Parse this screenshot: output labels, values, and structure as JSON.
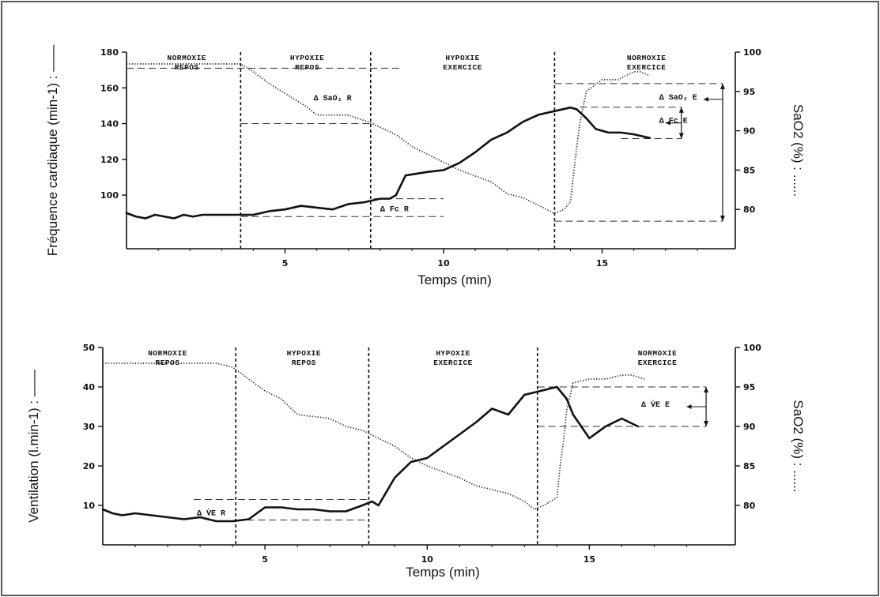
{
  "chart_data": [
    {
      "type": "line",
      "xlabel": "Temps (min)",
      "ylabel": "Fréquence cardiaque (min-1) : ——",
      "y2label": "SaO2 (%) : ......",
      "xlim": [
        0,
        19.2
      ],
      "ylim": [
        70,
        180
      ],
      "y2lim": [
        75,
        100
      ],
      "xticks": [
        "5",
        "10",
        "15"
      ],
      "yticks": [
        "100",
        "120",
        "140",
        "160",
        "180"
      ],
      "y2ticks": [
        "80",
        "85",
        "90",
        "95",
        "100"
      ],
      "phases": [
        {
          "l1": "NORMOXIE",
          "l2": "REPOS",
          "x": 1.9
        },
        {
          "l1": "HYPOXIE",
          "l2": "REPOS",
          "x": 5.7
        },
        {
          "l1": "HYPOXIE",
          "l2": "EXERCICE",
          "x": 10.6
        },
        {
          "l1": "NORMOXIE",
          "l2": "EXERCICE",
          "x": 16.4
        }
      ],
      "boundaries": [
        3.6,
        7.7,
        13.5
      ],
      "series": [
        {
          "axis": "left",
          "style": "solid",
          "x": [
            0,
            0.3,
            0.6,
            0.9,
            1.2,
            1.5,
            1.8,
            2.1,
            2.4,
            2.7,
            3,
            3.5,
            4,
            4.5,
            5,
            5.5,
            6,
            6.5,
            7,
            7.5,
            8,
            8.3,
            8.5,
            8.8,
            9.5,
            10,
            10.5,
            11,
            11.5,
            12,
            12.5,
            13,
            13.5,
            14,
            14.2,
            14.5,
            14.8,
            15.2,
            15.6,
            16,
            16.5
          ],
          "values": [
            90,
            88,
            87,
            89,
            88,
            87,
            89,
            88,
            89,
            89,
            89,
            89,
            89,
            91,
            92,
            94,
            93,
            92,
            95,
            96,
            98,
            98,
            100,
            111,
            113,
            114,
            118,
            124,
            131,
            135,
            141,
            145,
            147,
            149,
            148,
            143,
            137,
            135,
            135,
            134,
            132
          ]
        },
        {
          "axis": "right",
          "style": "dotted",
          "x": [
            0,
            3.4,
            3.6,
            4,
            4.5,
            5.1,
            5.7,
            6,
            7,
            7.7,
            8.5,
            9,
            10,
            10.5,
            11.5,
            12,
            12.5,
            13,
            13.5,
            13.8,
            14,
            14.2,
            14.3,
            14.5,
            15,
            15.5,
            16,
            16.2,
            16.5
          ],
          "values": [
            98.5,
            98.5,
            98.5,
            97.5,
            96,
            94.5,
            93,
            92,
            92,
            91,
            89.5,
            88,
            86,
            85,
            83.5,
            82,
            81.5,
            80.5,
            79.5,
            80,
            81,
            88,
            91,
            95,
            96.5,
            96.5,
            97.5,
            97.5,
            97
          ]
        }
      ],
      "annotations": [
        {
          "text": "Δ SaO₂ R"
        },
        {
          "text": "Δ Fc R"
        },
        {
          "text": "Δ SaO₂ E"
        },
        {
          "text": "Δ Fc E"
        }
      ]
    },
    {
      "type": "line",
      "xlabel": "Temps (min)",
      "ylabel": "Ventilation (l.min-1) : ——",
      "y2label": "SaO2 (%) : ......",
      "xlim": [
        0,
        19.5
      ],
      "ylim": [
        0,
        50
      ],
      "y2lim": [
        75,
        100
      ],
      "xticks": [
        "5",
        "10",
        "15"
      ],
      "yticks": [
        "10",
        "20",
        "30",
        "40",
        "50"
      ],
      "y2ticks": [
        "80",
        "85",
        "90",
        "95",
        "100"
      ],
      "phases": [
        {
          "l1": "NORMOXIE",
          "l2": "REPOS",
          "x": 2
        },
        {
          "l1": "HYPOXIE",
          "l2": "REPOS",
          "x": 6.2
        },
        {
          "l1": "HYPOXIE",
          "l2": "EXERCICE",
          "x": 10.8
        },
        {
          "l1": "NORMOXIE",
          "l2": "EXERCICE",
          "x": 17.1
        }
      ],
      "boundaries": [
        4.1,
        8.2,
        13.4
      ],
      "series": [
        {
          "axis": "left",
          "style": "solid",
          "x": [
            0,
            0.3,
            0.6,
            1,
            1.5,
            2,
            2.5,
            3,
            3.5,
            4,
            4.5,
            5,
            5.5,
            6,
            6.5,
            7,
            7.5,
            8,
            8.3,
            8.5,
            9,
            9.5,
            10,
            10.5,
            11,
            11.5,
            12,
            12.5,
            13,
            13.5,
            14,
            14.3,
            14.5,
            15,
            15.5,
            16,
            16.5
          ],
          "values": [
            9,
            8,
            7.5,
            8,
            7.5,
            7,
            6.5,
            7,
            6,
            6,
            6.5,
            9.5,
            9.5,
            9,
            9,
            8.5,
            8.5,
            10,
            11,
            10,
            17,
            21,
            22,
            25,
            28,
            31,
            34.5,
            33,
            38,
            39,
            40,
            37,
            33,
            27,
            30,
            32,
            30
          ]
        },
        {
          "axis": "right",
          "style": "dotted",
          "x": [
            0,
            3.5,
            4,
            4.5,
            5,
            5.5,
            6,
            7,
            7.5,
            8,
            8.5,
            9,
            9.5,
            10,
            11,
            11.5,
            12,
            12.5,
            13,
            13.3,
            13.6,
            14,
            14.1,
            14.2,
            14.3,
            14.5,
            15,
            15.5,
            16,
            16.3,
            16.7
          ],
          "values": [
            98,
            98,
            97.5,
            96,
            94.5,
            93.5,
            91.5,
            91,
            90,
            89.5,
            88.5,
            87.5,
            86,
            85,
            83.5,
            82.5,
            82,
            81.5,
            80.5,
            79.5,
            80,
            81,
            85,
            88,
            92,
            95.5,
            96,
            96,
            96.5,
            96.5,
            96
          ]
        }
      ],
      "annotations": [
        {
          "text": "Δ V̇E R"
        },
        {
          "text": "Δ V̇E E"
        }
      ]
    }
  ]
}
